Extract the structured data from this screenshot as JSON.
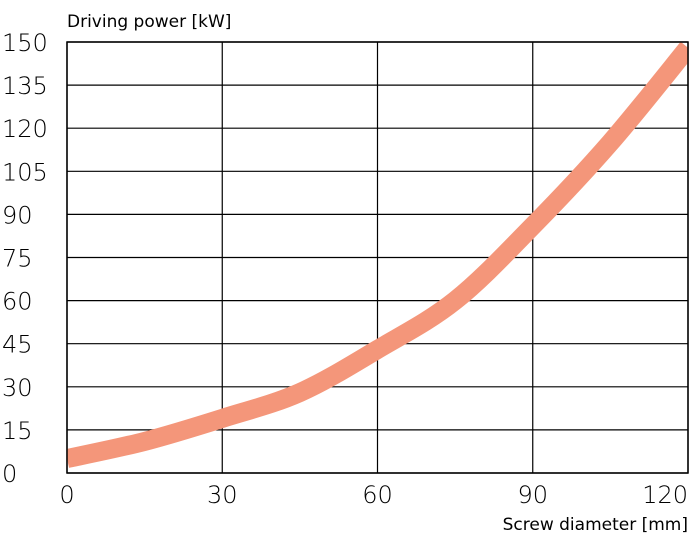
{
  "chart_data": {
    "type": "line",
    "title": "",
    "xlabel": "Screw diameter [mm]",
    "ylabel": "Driving power [kW]",
    "xlim": [
      0,
      120
    ],
    "ylim": [
      0,
      150
    ],
    "x_ticks": [
      0,
      30,
      60,
      90,
      120
    ],
    "y_ticks": [
      0,
      15,
      30,
      45,
      60,
      75,
      90,
      105,
      120,
      135,
      150
    ],
    "grid": true,
    "legend": "none",
    "series": [
      {
        "color": "#f4967a",
        "x": [
          0,
          15,
          30,
          45,
          60,
          75,
          90,
          105,
          120
        ],
        "y": [
          5,
          11,
          19,
          28,
          43,
          60,
          86,
          115,
          148
        ]
      }
    ]
  }
}
